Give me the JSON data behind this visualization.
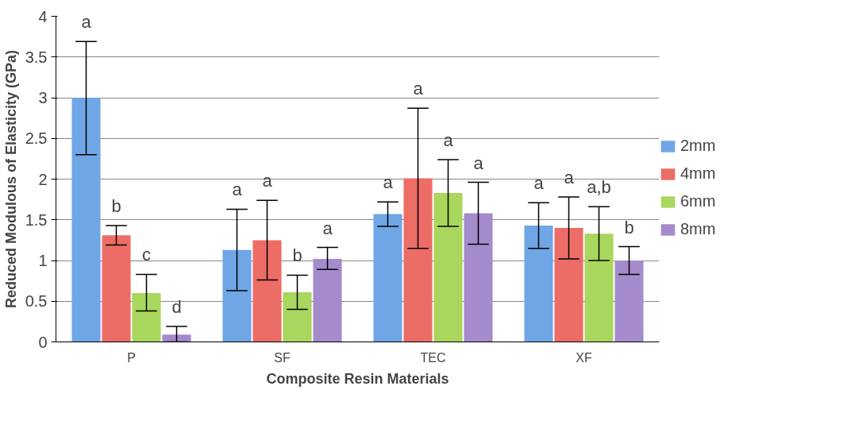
{
  "chart_data": {
    "type": "bar",
    "xlabel": "Composite Resin Materials",
    "ylabel": "Reduced Modulous of Elasticity (GPa)",
    "categories": [
      "P",
      "SF",
      "TEC",
      "XF"
    ],
    "series": [
      {
        "name": "2mm",
        "color": "#6fa6e6",
        "values": [
          3.0,
          1.13,
          1.57,
          1.43
        ],
        "errors": [
          [
            2.3,
            3.69
          ],
          [
            0.63,
            1.63
          ],
          [
            1.42,
            1.72
          ],
          [
            1.15,
            1.71
          ]
        ]
      },
      {
        "name": "4mm",
        "color": "#ec6d66",
        "values": [
          1.31,
          1.25,
          2.01,
          1.4
        ],
        "errors": [
          [
            1.19,
            1.43
          ],
          [
            0.76,
            1.74
          ],
          [
            1.15,
            2.87
          ],
          [
            1.02,
            1.78
          ]
        ]
      },
      {
        "name": "6mm",
        "color": "#a9d65c",
        "values": [
          0.6,
          0.61,
          1.83,
          1.33
        ],
        "errors": [
          [
            0.38,
            0.83
          ],
          [
            0.4,
            0.82
          ],
          [
            1.42,
            2.24
          ],
          [
            1.0,
            1.66
          ]
        ]
      },
      {
        "name": "8mm",
        "color": "#a48bcc",
        "values": [
          0.09,
          1.02,
          1.58,
          1.0
        ],
        "errors": [
          [
            0.0,
            0.19
          ],
          [
            0.89,
            1.16
          ],
          [
            1.2,
            1.96
          ],
          [
            0.83,
            1.17
          ]
        ]
      }
    ],
    "annotations": [
      "a",
      "b",
      "c",
      "d",
      "a",
      "a",
      "b",
      "a",
      "a",
      "a",
      "a",
      "a",
      "a",
      "a",
      "a,b",
      "b"
    ],
    "ylim": [
      0,
      4
    ],
    "yticks": [
      0,
      0.5,
      1,
      1.5,
      2,
      2.5,
      3,
      3.5,
      4
    ],
    "grid": "y",
    "legend": "right"
  }
}
